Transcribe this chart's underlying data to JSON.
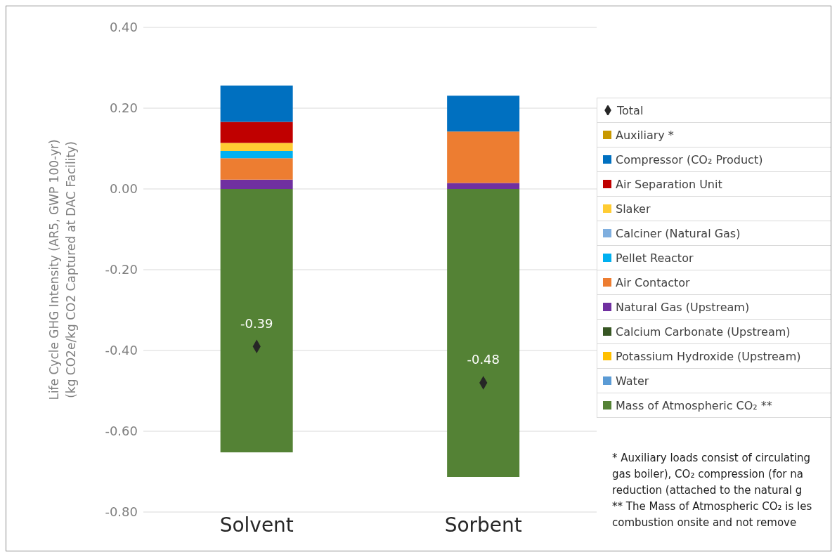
{
  "chart_data": {
    "type": "bar",
    "stacked": true,
    "categories": [
      "Solvent",
      "Sorbent"
    ],
    "ylabel": "Life Cycle GHG Intensity (AR5, GWP 100-yr)\n(kg CO2e/kg CO2 Captured at DAC Facility)",
    "ylim": [
      -0.8,
      0.4
    ],
    "yticks": [
      {
        "value": -0.8,
        "label": "-0.80"
      },
      {
        "value": -0.6,
        "label": "-0.60"
      },
      {
        "value": -0.4,
        "label": "-0.40"
      },
      {
        "value": -0.2,
        "label": "-0.20"
      },
      {
        "value": 0,
        "label": "0.00"
      },
      {
        "value": 0.2,
        "label": "0.20"
      },
      {
        "value": 0.4,
        "label": "0.40"
      }
    ],
    "grid": "y",
    "legend": "right",
    "series": [
      {
        "name": "Mass of Atmospheric CO₂ **",
        "color": "#548235",
        "values": [
          -0.652,
          -0.713
        ]
      },
      {
        "name": "Water",
        "color": "#5b9bd5",
        "values": [
          null,
          null
        ]
      },
      {
        "name": "Potassium Hydroxide (Upstream)",
        "color": "#ffc000",
        "values": [
          null,
          null
        ]
      },
      {
        "name": "Calcium Carbonate (Upstream)",
        "color": "#375623",
        "values": [
          null,
          null
        ]
      },
      {
        "name": "Natural Gas (Upstream)",
        "color": "#7030a0",
        "values": [
          0.023,
          0.015
        ]
      },
      {
        "name": "Air Contactor",
        "color": "#ed7d31",
        "values": [
          0.053,
          0.127
        ]
      },
      {
        "name": "Pellet Reactor",
        "color": "#00b0f0",
        "values": [
          0.018,
          null
        ]
      },
      {
        "name": "Calciner (Natural Gas)",
        "color": "#7fafdf",
        "values": [
          null,
          null
        ]
      },
      {
        "name": "Slaker",
        "color": "#ffcc33",
        "values": [
          0.02,
          null
        ]
      },
      {
        "name": "Air Separation Unit",
        "color": "#c00000",
        "values": [
          0.052,
          null
        ]
      },
      {
        "name": "Compressor (CO₂ Product)",
        "color": "#0070c0",
        "values": [
          0.09,
          0.089
        ]
      },
      {
        "name": "Auxiliary *",
        "color": "#c89800",
        "values": [
          null,
          null
        ]
      },
      {
        "name": "Total",
        "type": "scatter",
        "marker": "diamond",
        "color": "#262626",
        "values": [
          -0.39,
          -0.48
        ],
        "value_labels": [
          "-0.39",
          "-0.48"
        ]
      }
    ],
    "annotations": [
      "*  Auxiliary loads consist of circulating",
      "gas boiler), CO₂ compression (for na",
      "reduction (attached to the natural g",
      "** The Mass of Atmospheric CO₂ is les",
      "combustion onsite and not remove"
    ]
  }
}
